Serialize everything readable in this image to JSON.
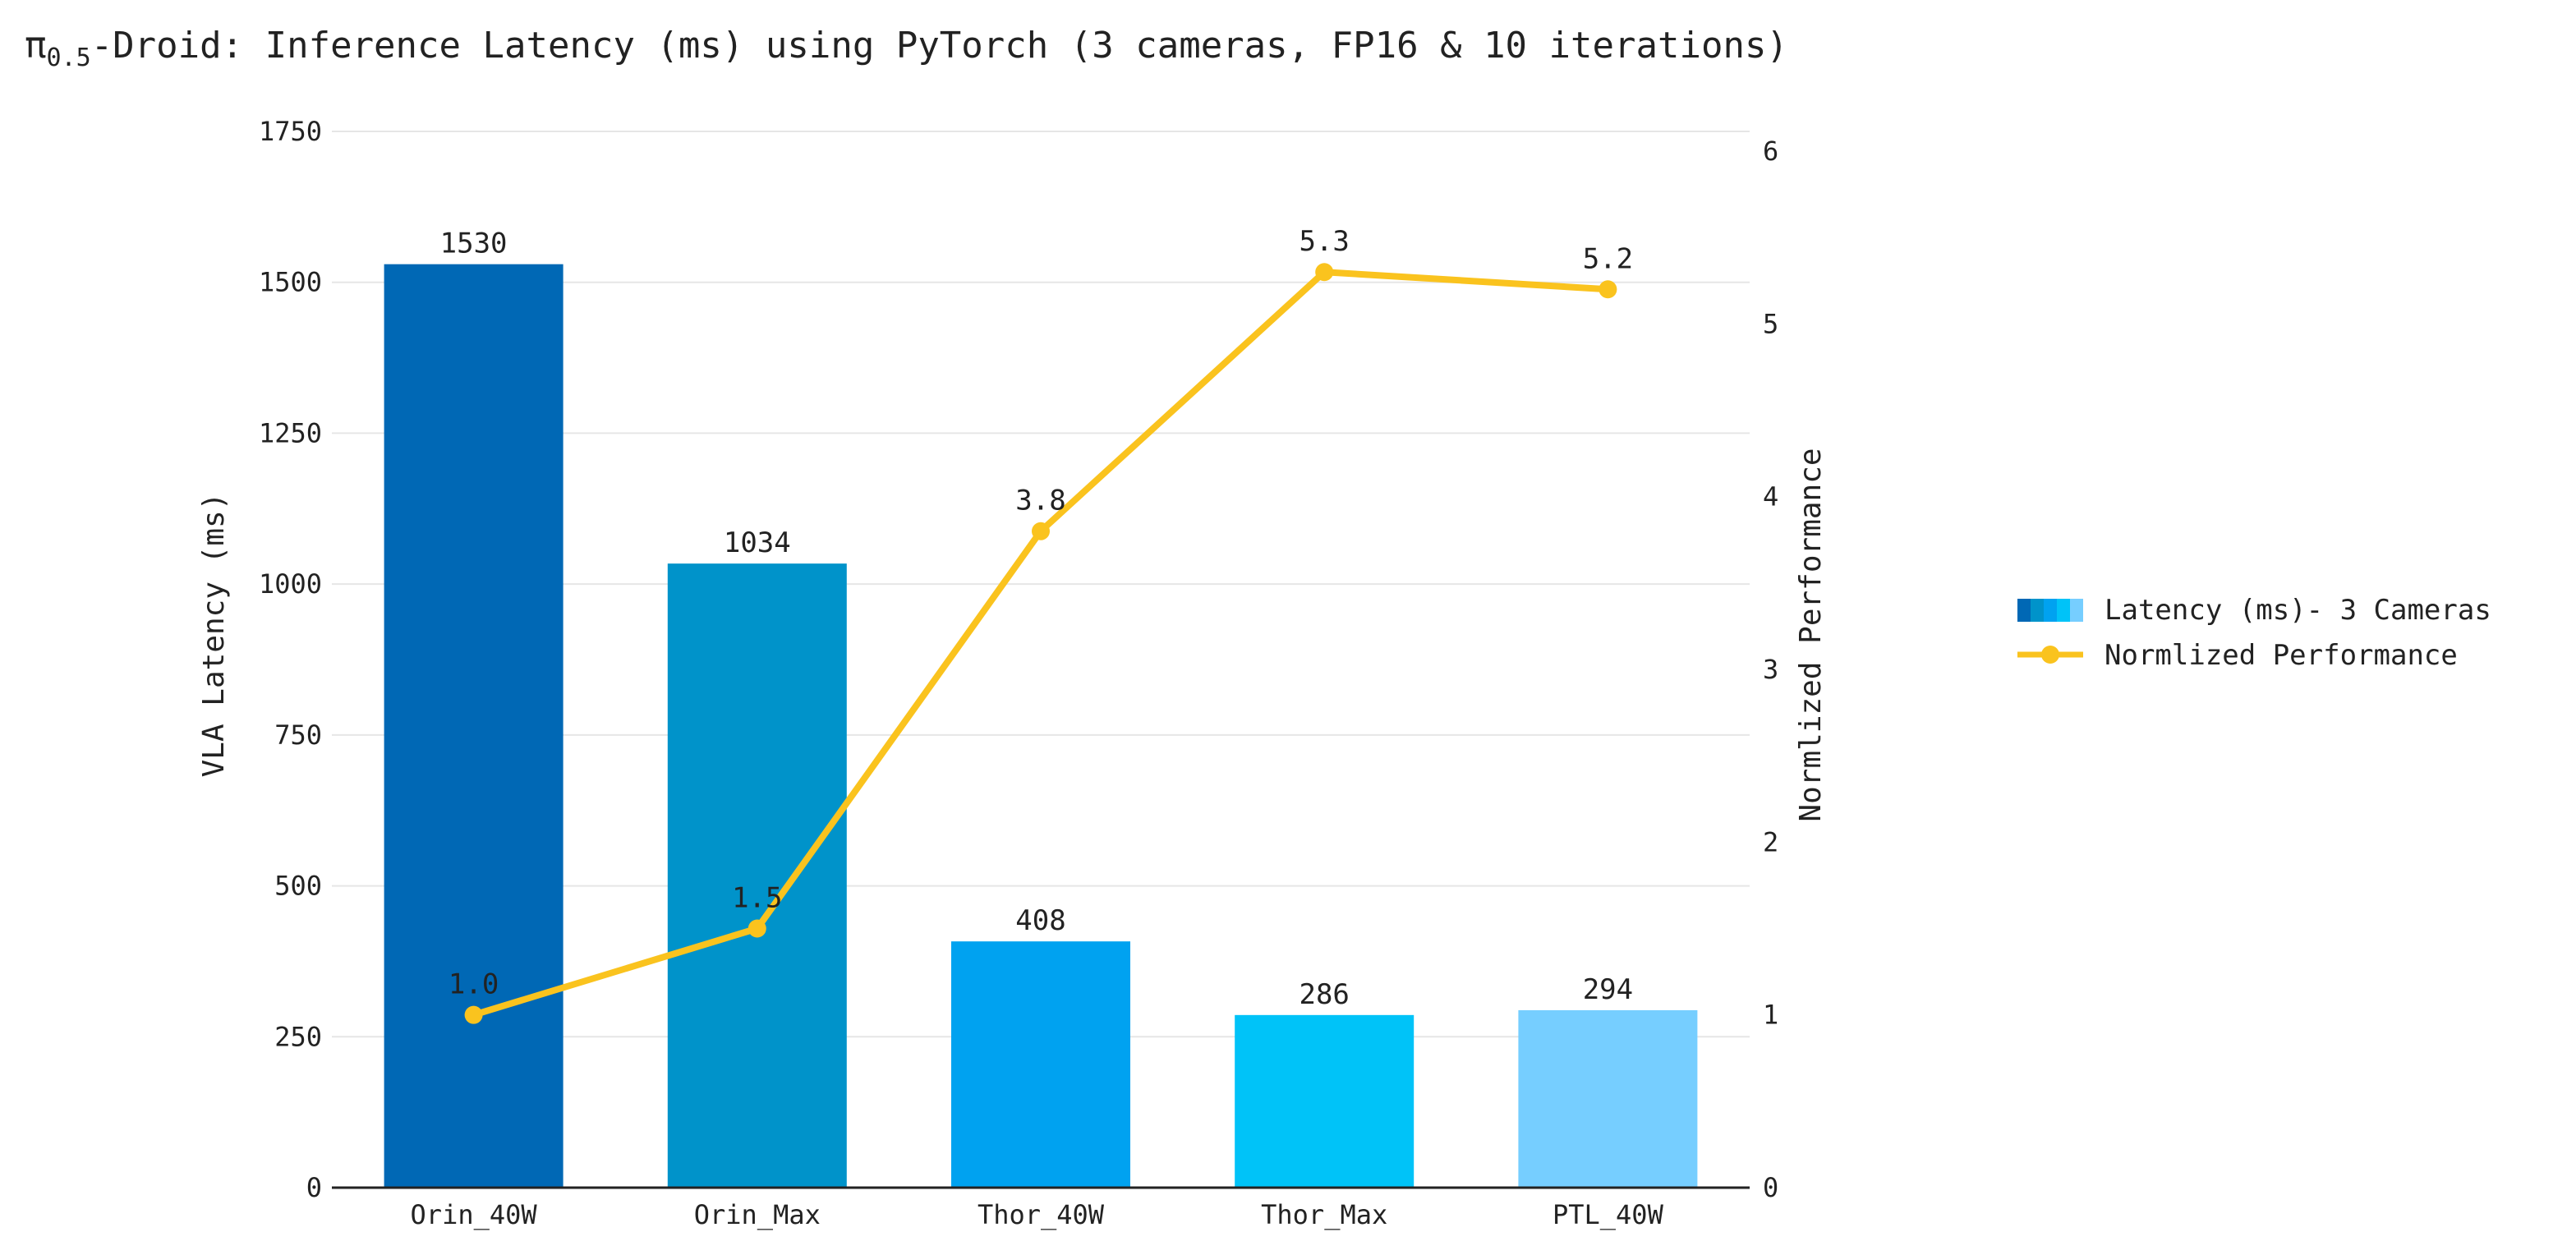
{
  "chart_data": {
    "type": "bar",
    "title_prefix": "π",
    "title_subscript": "0.5",
    "title_rest": "-Droid: Inference Latency (ms) using PyTorch (3 cameras, FP16 & 10 iterations)",
    "categories": [
      "Orin_40W",
      "Orin_Max",
      "Thor_40W",
      "Thor_Max",
      "PTL_40W"
    ],
    "ylabel": "VLA Latency (ms)",
    "y2label": "Normlized Performance",
    "ylim": [
      0,
      1750
    ],
    "y2lim": [
      0,
      6
    ],
    "yticks": [
      "0",
      "250",
      "500",
      "750",
      "1000",
      "1250",
      "1500",
      "1750"
    ],
    "y2ticks": [
      "0",
      "1",
      "2",
      "3",
      "4",
      "5",
      "6"
    ],
    "grid": true,
    "legend_position": "right",
    "series": [
      {
        "name": "Latency (ms)- 3 Cameras",
        "type": "bar",
        "axis": "left",
        "values": [
          1530,
          1034,
          408,
          286,
          294
        ],
        "labels": [
          "1530",
          "1034",
          "408",
          "286",
          "294"
        ],
        "colors": [
          "#0068B5",
          "#0093CA",
          "#00A2F0",
          "#00C3F8",
          "#76CEFF"
        ]
      },
      {
        "name": "Normlized Performance",
        "type": "line",
        "axis": "right",
        "values": [
          1.0,
          1.5,
          3.8,
          5.3,
          5.2
        ],
        "labels": [
          "1.0",
          "1.5",
          "3.8",
          "5.3",
          "5.2"
        ],
        "color": "#FAC31E"
      }
    ]
  }
}
